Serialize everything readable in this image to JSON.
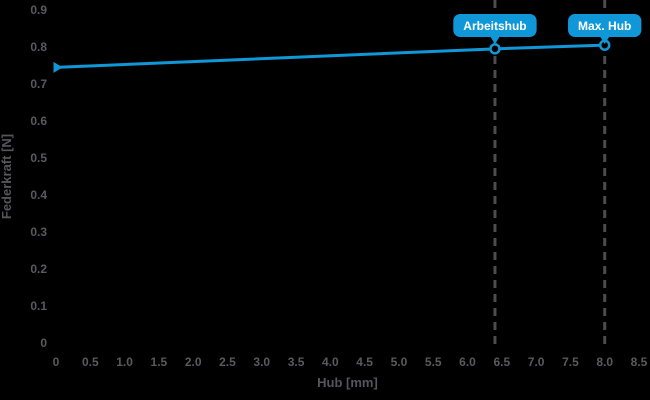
{
  "chart_data": {
    "type": "line",
    "title": "",
    "xlabel": "Hub [mm]",
    "ylabel": "Federkraft [N]",
    "xlim": [
      0,
      8.5
    ],
    "ylim": [
      0,
      0.9
    ],
    "grid": false,
    "legend": false,
    "x_ticks": {
      "values": [
        0,
        0.5,
        1.0,
        1.5,
        2.0,
        2.5,
        3.0,
        3.5,
        4.0,
        4.5,
        5.0,
        5.5,
        6.0,
        6.5,
        7.0,
        7.5,
        8.0,
        8.5
      ],
      "labels": [
        "0",
        "0.5",
        "1.0",
        "1.5",
        "2.0",
        "2.5",
        "3.0",
        "3.5",
        "4.0",
        "4.5",
        "5.0",
        "5.5",
        "6.0",
        "6.5",
        "7.0",
        "7.5",
        "8.0",
        "8.5"
      ]
    },
    "y_ticks": {
      "values": [
        0,
        0.1,
        0.2,
        0.3,
        0.4,
        0.5,
        0.6,
        0.7,
        0.8,
        0.9
      ],
      "labels": [
        "0",
        "0.1",
        "0.2",
        "0.3",
        "0.4",
        "0.5",
        "0.6",
        "0.7",
        "0.8",
        "0.9"
      ]
    },
    "series": [
      {
        "name": "Federkraft",
        "points": [
          [
            0,
            0.745
          ],
          [
            6.4,
            0.795
          ],
          [
            8.0,
            0.805
          ]
        ]
      }
    ],
    "annotations": [
      {
        "label": "Arbeitshub",
        "x": 6.4,
        "y": 0.795
      },
      {
        "label": "Max. Hub",
        "x": 8.0,
        "y": 0.805
      }
    ]
  },
  "colors": {
    "background": "#000000",
    "accent_blue": "#0f97d7",
    "tick_label": "#5a5a5e",
    "axis_title": "#56565a",
    "dashed_line": "#4c4c51",
    "badge_text": "#ffffff"
  }
}
